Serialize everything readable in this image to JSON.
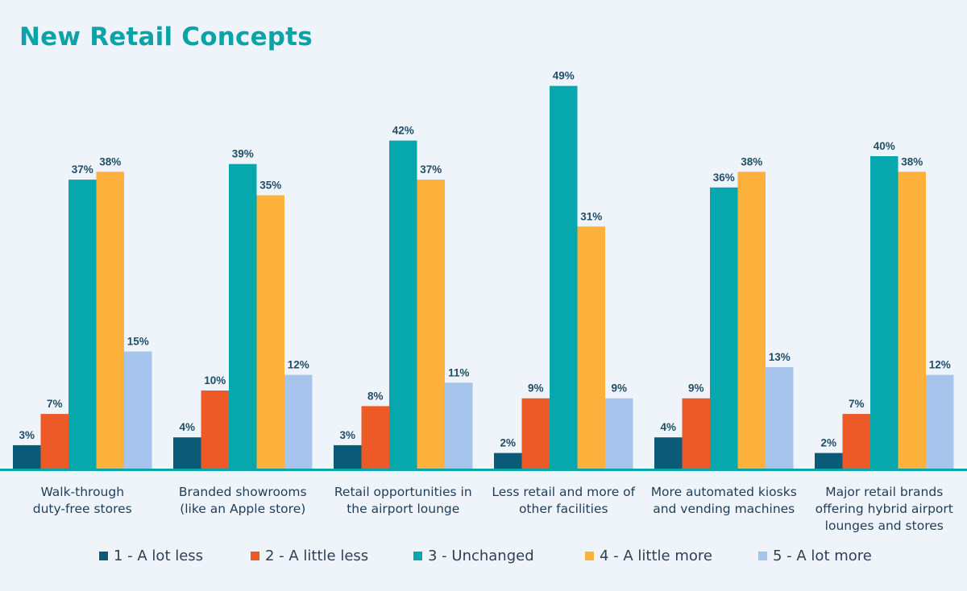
{
  "title": "New Retail Concepts",
  "chart_data": {
    "type": "bar",
    "title": "New Retail Concepts",
    "categories": [
      [
        "Walk-through",
        "duty-free stores"
      ],
      [
        "Branded showrooms",
        "(like an Apple store)"
      ],
      [
        "Retail opportunities in",
        "the airport lounge"
      ],
      [
        "Less retail and more of",
        "other facilities"
      ],
      [
        "More automated kiosks",
        "and vending machines"
      ],
      [
        "Major retail brands",
        "offering hybrid airport",
        "lounges and stores"
      ]
    ],
    "series": [
      {
        "name": "1 - A lot less",
        "color": "#0b5b78",
        "values": [
          3,
          4,
          3,
          2,
          4,
          2
        ]
      },
      {
        "name": "2 - A little less",
        "color": "#ee5a27",
        "values": [
          7,
          10,
          8,
          9,
          9,
          7
        ]
      },
      {
        "name": "3 - Unchanged",
        "color": "#06a8ad",
        "values": [
          37,
          39,
          42,
          49,
          36,
          40
        ]
      },
      {
        "name": "4 - A little more",
        "color": "#fbb13c",
        "values": [
          38,
          35,
          37,
          31,
          38,
          38
        ]
      },
      {
        "name": "5 - A lot more",
        "color": "#a7c4ec",
        "values": [
          15,
          12,
          11,
          9,
          13,
          12
        ]
      }
    ],
    "value_suffix": "%",
    "legend_position": "bottom",
    "grid": false
  },
  "colors": {
    "title": "#0aa3a8",
    "axis": "#0aa3a8",
    "data_label": "#1f4e66",
    "category_label": "#1f3d56"
  }
}
